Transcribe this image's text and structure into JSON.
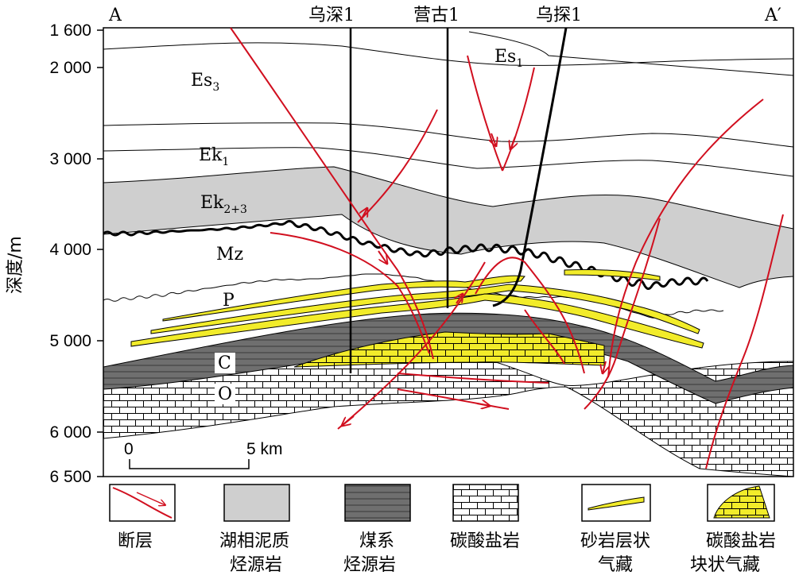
{
  "profile": {
    "left_label": "A",
    "right_label": "A′"
  },
  "wells": [
    {
      "name": "乌深1"
    },
    {
      "name": "营古1"
    },
    {
      "name": "乌探1"
    }
  ],
  "y_axis": {
    "label": "深度/m",
    "ticks": [
      "1 600",
      "2 000",
      "3 000",
      "4 000",
      "5 000",
      "6 000",
      "6 500"
    ]
  },
  "formations": {
    "es1": "Es",
    "es1_sub": "1",
    "es3": "Es",
    "es3_sub": "3",
    "ek1": "Ek",
    "ek1_sub": "1",
    "ek23": "Ek",
    "ek23_sub": "2+3",
    "mz": "Mz",
    "p": "P",
    "c": "C",
    "o": "O"
  },
  "scale_bar": {
    "start": "0",
    "end": "5 km"
  },
  "legend": [
    {
      "lines": [
        "断层"
      ],
      "icon": "fault-icon"
    },
    {
      "lines": [
        "湖相泥质",
        "烃源岩"
      ],
      "icon": "lacustrine-mudstone-icon"
    },
    {
      "lines": [
        "煤系",
        "烃源岩"
      ],
      "icon": "coal-measure-icon"
    },
    {
      "lines": [
        "碳酸盐岩"
      ],
      "icon": "carbonate-icon"
    },
    {
      "lines": [
        "砂岩层状",
        "气藏"
      ],
      "icon": "sandstone-gas-icon"
    },
    {
      "lines": [
        "碳酸盐岩",
        "块状气藏"
      ],
      "icon": "massive-gas-icon"
    }
  ],
  "colors": {
    "fault": "#d10f1f",
    "mudstone_gray": "#cfcfcf",
    "coal_dark": "#6f6f6f",
    "sandstone_yellow": "#f2ec2a",
    "well_line": "#000000"
  }
}
